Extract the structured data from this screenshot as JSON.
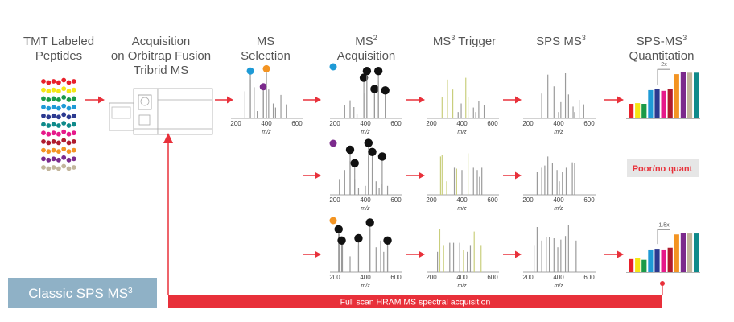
{
  "colors": {
    "arrow": "#e8303a",
    "peak": "#9a9a9a",
    "trigger_peak": "#c9ce7c",
    "marker": "#111111",
    "banner": "#8fb1c6",
    "poor_bg": "#e6e6e6"
  },
  "titles": [
    {
      "lines": [
        "TMT Labeled",
        "Peptides"
      ]
    },
    {
      "lines": [
        "Acquisition",
        "on Orbitrap Fusion",
        "Tribrid MS"
      ]
    },
    {
      "lines": [
        "MS",
        "Selection"
      ]
    },
    {
      "lines": [
        "MS2",
        "Acquisition"
      ],
      "sup": "2"
    },
    {
      "lines": [
        "MS3 Trigger"
      ],
      "sup": "3"
    },
    {
      "lines": [
        "SPS MS3"
      ],
      "sup": "3"
    },
    {
      "lines": [
        "SPS-MS3",
        "Quantitation"
      ],
      "sup": "3"
    }
  ],
  "peptide_colors": [
    "#e8202a",
    "#f5e614",
    "#1a9a48",
    "#1e9ad6",
    "#2b3990",
    "#0f8a8a",
    "#e6198a",
    "#b01c2e",
    "#f39422",
    "#7b2a8c",
    "#c2b59b"
  ],
  "axis": {
    "ticks": [
      "200",
      "400",
      "600"
    ],
    "label": "m/z",
    "range": [
      200,
      600
    ]
  },
  "spectra": [
    {
      "id": "ms-selection",
      "peaks": [
        [
          260,
          0.6
        ],
        [
          295,
          0.86
        ],
        [
          320,
          0.69
        ],
        [
          340,
          0.16
        ],
        [
          380,
          0.6
        ],
        [
          400,
          1
        ],
        [
          415,
          0.64
        ],
        [
          445,
          0.33
        ],
        [
          460,
          0.24
        ],
        [
          495,
          0.52
        ],
        [
          530,
          0.31
        ]
      ],
      "markers": [
        [
          295,
          1.05,
          "#1e9ad6"
        ],
        [
          380,
          0.7,
          "#7b2a8c"
        ],
        [
          400,
          1.1,
          "#f39422"
        ]
      ]
    },
    {
      "id": "ms2-row1",
      "peaks": [
        [
          265,
          0.3
        ],
        [
          300,
          0.4
        ],
        [
          325,
          0.25
        ],
        [
          345,
          0.1
        ],
        [
          390,
          0.55
        ],
        [
          410,
          0.9
        ],
        [
          460,
          0.55
        ],
        [
          485,
          0.85
        ],
        [
          530,
          0.5
        ]
      ],
      "markers": [
        [
          390,
          0.9,
          "#111111"
        ],
        [
          410,
          1.05,
          "#111111"
        ],
        [
          460,
          0.65,
          "#111111"
        ],
        [
          485,
          1.05,
          "#111111"
        ],
        [
          530,
          0.62,
          "#111111"
        ]
      ],
      "corner_marker": "#1e9ad6"
    },
    {
      "id": "ms3-trigger-row1",
      "peaks": [
        [
          270,
          0.47,
          "t"
        ],
        [
          305,
          0.86,
          "t"
        ],
        [
          340,
          0.64,
          "t"
        ],
        [
          375,
          0.14
        ],
        [
          395,
          0.33
        ],
        [
          425,
          0.9,
          "t"
        ],
        [
          440,
          0.47,
          "t"
        ],
        [
          475,
          0.24
        ],
        [
          490,
          0.14
        ],
        [
          510,
          0.38
        ],
        [
          545,
          0.29
        ]
      ]
    },
    {
      "id": "sps-ms3-row1",
      "peaks": [
        [
          290,
          0.55
        ],
        [
          330,
          0.97
        ],
        [
          370,
          0.71
        ],
        [
          400,
          0.14
        ],
        [
          415,
          0.36
        ],
        [
          445,
          1
        ],
        [
          465,
          0.53
        ],
        [
          495,
          0.26
        ],
        [
          505,
          0.14
        ],
        [
          535,
          0.41
        ],
        [
          565,
          0.31
        ]
      ]
    },
    {
      "id": "ms2-row2",
      "peaks": [
        [
          230,
          0.35
        ],
        [
          265,
          0.55
        ],
        [
          300,
          0.75
        ],
        [
          330,
          0.35
        ],
        [
          355,
          0.15
        ],
        [
          400,
          0.2
        ],
        [
          420,
          0.85
        ],
        [
          445,
          0.6
        ],
        [
          470,
          0.3
        ],
        [
          490,
          0.15
        ],
        [
          510,
          0.25
        ],
        [
          545,
          0.2
        ]
      ],
      "markers": [
        [
          300,
          1,
          "#111111"
        ],
        [
          330,
          0.7,
          "#111111"
        ],
        [
          420,
          1.15,
          "#111111"
        ],
        [
          445,
          0.95,
          "#111111"
        ],
        [
          510,
          0.85,
          "#111111"
        ]
      ],
      "corner_marker": "#7b2a8c"
    },
    {
      "id": "ms3-trigger-row2",
      "peaks": [
        [
          260,
          0.85,
          "t"
        ],
        [
          270,
          0.88,
          "t"
        ],
        [
          300,
          0.3,
          "t"
        ],
        [
          350,
          0.6
        ],
        [
          365,
          0.58,
          "t"
        ],
        [
          400,
          0.55
        ],
        [
          440,
          0.92,
          "t"
        ],
        [
          475,
          0.6
        ],
        [
          500,
          0.55
        ],
        [
          515,
          0.4
        ],
        [
          530,
          0.6
        ]
      ]
    },
    {
      "id": "sps-ms3-row2",
      "peaks": [
        [
          260,
          0.5
        ],
        [
          290,
          0.6
        ],
        [
          310,
          0.65
        ],
        [
          330,
          0.85
        ],
        [
          360,
          0.7
        ],
        [
          390,
          0.55
        ],
        [
          405,
          0.3
        ],
        [
          425,
          0.5
        ],
        [
          450,
          0.6
        ],
        [
          490,
          0.72
        ],
        [
          505,
          0.7
        ]
      ]
    },
    {
      "id": "ms2-row3",
      "peaks": [
        [
          230,
          0.85
        ],
        [
          250,
          0.62
        ],
        [
          300,
          0.35
        ],
        [
          355,
          0.6
        ],
        [
          430,
          0.95
        ],
        [
          470,
          0.55
        ],
        [
          500,
          0.7
        ],
        [
          520,
          0.45
        ],
        [
          545,
          0.6
        ]
      ],
      "markers": [
        [
          225,
          0.95,
          "#111111"
        ],
        [
          245,
          0.7,
          "#111111"
        ],
        [
          355,
          0.75,
          "#111111"
        ],
        [
          430,
          1.1,
          "#111111"
        ],
        [
          545,
          0.7,
          "#111111"
        ]
      ],
      "corner_marker": "#f39422"
    },
    {
      "id": "ms3-trigger-row3",
      "peaks": [
        [
          240,
          0.45
        ],
        [
          255,
          0.95,
          "t"
        ],
        [
          280,
          0.6,
          "t"
        ],
        [
          320,
          0.65
        ],
        [
          345,
          0.65
        ],
        [
          385,
          0.65
        ],
        [
          410,
          0.5,
          "t"
        ],
        [
          435,
          0.45
        ],
        [
          455,
          0.6
        ],
        [
          480,
          0.9,
          "t"
        ],
        [
          525,
          0.6,
          "t"
        ]
      ]
    },
    {
      "id": "sps-ms3-row3",
      "peaks": [
        [
          240,
          0.6
        ],
        [
          260,
          1
        ],
        [
          290,
          0.7
        ],
        [
          320,
          0.78
        ],
        [
          340,
          0.78
        ],
        [
          370,
          0.75
        ],
        [
          395,
          0.55
        ],
        [
          415,
          0.72
        ],
        [
          445,
          0.8
        ],
        [
          465,
          1.05
        ],
        [
          515,
          0.7
        ]
      ]
    }
  ],
  "quant": [
    {
      "values": [
        1,
        1.05,
        1,
        1.95,
        2,
        1.9,
        2.05,
        3.05,
        3.2,
        3.15,
        3.15
      ],
      "ratio_label": "2x"
    },
    {
      "values": [
        0.95,
        1,
        0.9,
        1.65,
        1.7,
        1.65,
        1.78,
        2.75,
        2.88,
        2.82,
        2.82
      ],
      "ratio_label": "1.5x"
    }
  ],
  "quant_colors": [
    "#e8202a",
    "#f5e614",
    "#1a9a48",
    "#1e9ad6",
    "#2b3990",
    "#e6198a",
    "#b01c2e",
    "#f39422",
    "#7b2a8c",
    "#c2b59b",
    "#0f8a8a"
  ],
  "poor_quant_label": "Poor/no quant",
  "banner_label": "Classic SPS MS3",
  "feedback_label": "Full scan HRAM MS spectral acquisition"
}
